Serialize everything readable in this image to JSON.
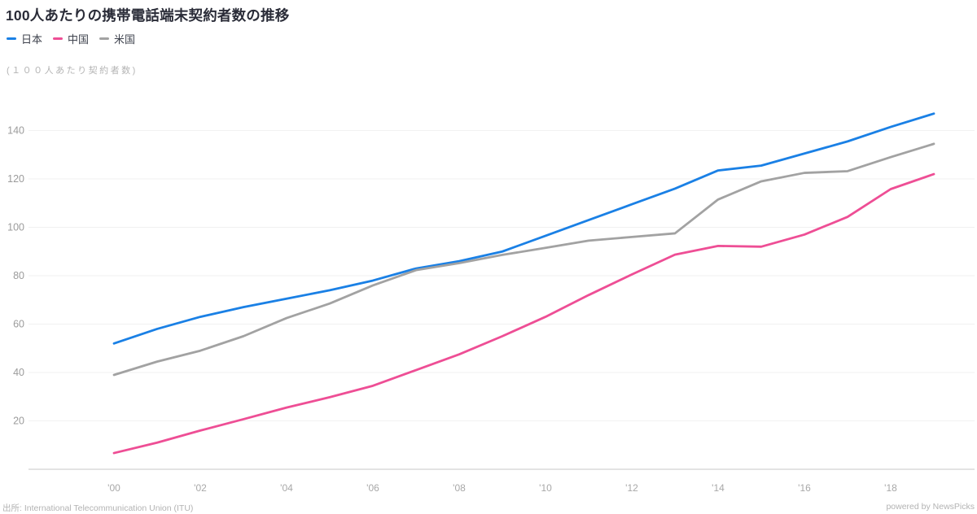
{
  "header": {
    "title": "100人あたりの携帯電話端末契約者数の推移",
    "unit_label": "(１００人あたり契約者数)"
  },
  "footer": {
    "source": "出所: International Telecommunication Union (ITU)",
    "credit": "powered by NewsPicks"
  },
  "colors": {
    "japan_line": "#1a80e5",
    "china_line": "#ee4e95",
    "usa_line": "#a2a2a2",
    "grid": "#f1f1f1",
    "axis_baseline": "#e3e3e3",
    "axis_text": "#a8a8a8"
  },
  "chart_data": {
    "type": "line",
    "title": "100人あたりの携帯電話端末契約者数の推移",
    "unit_label": "(１００人あたり契約者数)",
    "xlabel": "",
    "ylabel": "(100人あたり契約者数)",
    "grid": true,
    "legend_position": "top-left",
    "x": [
      2000,
      2001,
      2002,
      2003,
      2004,
      2005,
      2006,
      2007,
      2008,
      2009,
      2010,
      2011,
      2012,
      2013,
      2014,
      2015,
      2016,
      2017,
      2018,
      2019
    ],
    "x_ticks": [
      {
        "year": 2000,
        "label": "'00"
      },
      {
        "year": 2002,
        "label": "'02"
      },
      {
        "year": 2004,
        "label": "'04"
      },
      {
        "year": 2006,
        "label": "'06"
      },
      {
        "year": 2008,
        "label": "'08"
      },
      {
        "year": 2010,
        "label": "'10"
      },
      {
        "year": 2012,
        "label": "'12"
      },
      {
        "year": 2014,
        "label": "'14"
      },
      {
        "year": 2016,
        "label": "'16"
      },
      {
        "year": 2018,
        "label": "'18"
      }
    ],
    "y_ticks": [
      20,
      40,
      60,
      80,
      100,
      120,
      140
    ],
    "ylim": [
      0,
      150
    ],
    "series": [
      {
        "name": "日本",
        "color": "#1a80e5",
        "values": [
          52,
          58,
          63,
          67,
          70.5,
          74,
          78,
          83,
          86,
          90,
          96.5,
          103,
          109.5,
          116,
          123.5,
          125.5,
          130.5,
          135.5,
          141.5,
          147
        ]
      },
      {
        "name": "中国",
        "color": "#ee4e95",
        "values": [
          6.7,
          11,
          16,
          20.7,
          25.5,
          29.8,
          34.5,
          41,
          47.5,
          55,
          63,
          72,
          80.5,
          88.7,
          92.3,
          92,
          97,
          104.3,
          115.8,
          122
        ]
      },
      {
        "name": "米国",
        "color": "#a2a2a2",
        "values": [
          39,
          44.5,
          49,
          55,
          62.5,
          68.5,
          76,
          82.3,
          85.2,
          88.6,
          91.5,
          94.5,
          96,
          97.5,
          111.5,
          119,
          122.5,
          123.2,
          129,
          134.5
        ]
      }
    ]
  }
}
